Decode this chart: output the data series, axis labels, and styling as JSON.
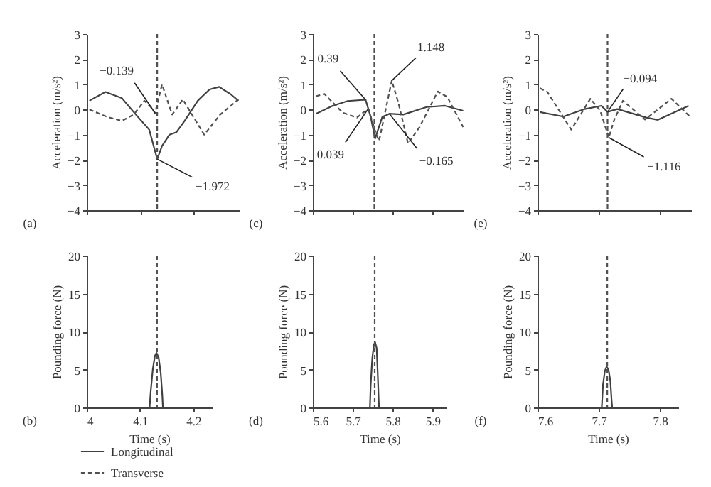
{
  "chart_data": [
    {
      "type": "line",
      "ylabel": "Acceleration (m/s²)",
      "xlim": [
        4,
        4.285
      ],
      "xticks": [
        4,
        4.1,
        4.2
      ],
      "ylim": [
        -4,
        3
      ],
      "yticks": [
        {
          "value": -4,
          "label": "−4"
        },
        {
          "value": -3,
          "label": "−3"
        },
        {
          "value": -2,
          "label": "−2"
        },
        {
          "value": -1,
          "label": "−1"
        },
        0,
        1,
        2,
        3
      ],
      "tick_labels": "y",
      "legend": "bottom",
      "series": [
        {
          "name": "Longitudinal",
          "color": "#404040",
          "line_style": "solid",
          "x": [
            4.005,
            4.035,
            4.066,
            4.092,
            4.117,
            4.126,
            4.132,
            4.141,
            4.155,
            4.168,
            4.185,
            4.208,
            4.23,
            4.248,
            4.27,
            4.284
          ],
          "values": [
            0.35,
            0.7,
            0.45,
            -0.2,
            -0.8,
            -1.5,
            -1.972,
            -1.45,
            -1.0,
            -0.9,
            -0.4,
            0.35,
            0.8,
            0.9,
            0.6,
            0.35
          ]
        },
        {
          "name": "Transverse",
          "color": "#505050",
          "line_style": "dashed",
          "x": [
            4.005,
            4.039,
            4.066,
            4.088,
            4.108,
            4.12,
            4.128,
            4.141,
            4.16,
            4.18,
            4.2,
            4.22,
            4.25,
            4.284
          ],
          "values": [
            0,
            -0.3,
            -0.45,
            -0.2,
            0.35,
            0.1,
            -0.139,
            1.0,
            -0.2,
            0.4,
            -0.3,
            -1.0,
            -0.2,
            0.4
          ]
        }
      ],
      "ref_lines": [
        {
          "axis": "x",
          "value": 4.132,
          "line_style": "dashed",
          "color": "#505050"
        }
      ],
      "annotations": [
        {
          "text": "−0.139",
          "x": 4.128,
          "y": -0.139
        },
        {
          "text": "−1.972",
          "x": 4.132,
          "y": -1.972
        },
        "(a)"
      ]
    },
    {
      "type": "line",
      "ylabel": "Acceleration (m/s²)",
      "xlim": [
        5.6,
        5.98
      ],
      "xticks": [
        5.6,
        5.7,
        5.8,
        5.9
      ],
      "ylim": [
        -4,
        3
      ],
      "yticks": [
        {
          "value": -4,
          "label": "−4"
        },
        {
          "value": -3,
          "label": "−3"
        },
        {
          "value": -2,
          "label": "−2"
        },
        {
          "value": -1,
          "label": "−1"
        },
        0,
        1,
        2,
        3
      ],
      "tick_labels": "y",
      "series": [
        {
          "color": "#404040",
          "line_style": "solid",
          "x": [
            5.608,
            5.65,
            5.688,
            5.733,
            5.746,
            5.757,
            5.775,
            5.793,
            5.828,
            5.887,
            5.933,
            5.979
          ],
          "values": [
            -0.17,
            0.15,
            0.34,
            0.39,
            -0.3,
            -1.15,
            -0.3,
            -0.165,
            -0.2,
            0.1,
            0.15,
            -0.05
          ]
        },
        {
          "color": "#505050",
          "line_style": "dashed",
          "x": [
            5.608,
            5.629,
            5.676,
            5.711,
            5.74,
            5.758,
            5.767,
            5.799,
            5.816,
            5.84,
            5.869,
            5.915,
            5.939,
            5.979
          ],
          "values": [
            0.53,
            0.62,
            -0.13,
            -0.32,
            0.039,
            -0.9,
            -1.25,
            1.148,
            0.25,
            -1.35,
            -0.7,
            0.72,
            0.5,
            -0.7
          ]
        }
      ],
      "ref_lines": [
        {
          "axis": "x",
          "value": 5.755,
          "line_style": "dashed",
          "color": "#505050"
        }
      ],
      "annotations": [
        {
          "text": "0.39",
          "x": 5.733,
          "y": 0.39
        },
        {
          "text": "0.039",
          "x": 5.74,
          "y": 0.039
        },
        {
          "text": "1.148",
          "x": 5.799,
          "y": 1.148
        },
        {
          "text": "−0.165",
          "x": 5.793,
          "y": -0.165
        },
        "(c)"
      ]
    },
    {
      "type": "line",
      "ylabel": "Acceleration (m/s²)",
      "xlim": [
        7.6,
        7.85
      ],
      "xticks": [
        7.6,
        7.7,
        7.8
      ],
      "ylim": [
        -4,
        3
      ],
      "yticks": [
        {
          "value": -4,
          "label": "−4"
        },
        {
          "value": -3,
          "label": "−3"
        },
        {
          "value": -2,
          "label": "−2"
        },
        {
          "value": -1,
          "label": "−1"
        },
        0,
        1,
        2,
        3
      ],
      "tick_labels": "y",
      "series": [
        {
          "color": "#404040",
          "line_style": "solid",
          "x": [
            7.604,
            7.642,
            7.677,
            7.704,
            7.714,
            7.73,
            7.777,
            7.796,
            7.846
          ],
          "values": [
            -0.1,
            -0.28,
            0.02,
            0.15,
            -0.094,
            0.02,
            -0.32,
            -0.41,
            0.15
          ]
        },
        {
          "color": "#505050",
          "line_style": "dashed",
          "x": [
            7.604,
            7.616,
            7.655,
            7.686,
            7.702,
            7.716,
            7.725,
            7.739,
            7.775,
            7.818,
            7.849
          ],
          "values": [
            0.85,
            0.7,
            -0.8,
            0.43,
            -0.04,
            -1.116,
            -0.4,
            0.35,
            -0.4,
            0.43,
            -0.3
          ]
        }
      ],
      "ref_lines": [
        {
          "axis": "x",
          "value": 7.714,
          "line_style": "dashed",
          "color": "#505050"
        }
      ],
      "annotations": [
        {
          "text": "−0.094",
          "x": 7.714,
          "y": -0.094
        },
        {
          "text": "−1.116",
          "x": 7.716,
          "y": -1.116
        },
        "(e)"
      ]
    },
    {
      "type": "line",
      "xlabel": "Time (s)",
      "ylabel": "Pounding force (N)",
      "xlim": [
        4,
        4.235
      ],
      "xticks": [
        4,
        4.1,
        4.2
      ],
      "ylim": [
        0,
        20
      ],
      "yticks": [
        0,
        5,
        10,
        15,
        20
      ],
      "series": [
        {
          "color": "#404040",
          "line_style": "solid",
          "x": [
            4,
            4.118,
            4.12,
            4.124,
            4.128,
            4.131,
            4.135,
            4.139,
            4.142,
            4.143,
            4.235
          ],
          "values": [
            0,
            0,
            2,
            5,
            6.8,
            7.2,
            6.6,
            4.5,
            1.5,
            0,
            0
          ]
        }
      ],
      "ref_lines": [
        {
          "axis": "x",
          "value": 4.132,
          "line_style": "dashed",
          "color": "#505050"
        }
      ],
      "annotations": [
        "(b)"
      ]
    },
    {
      "type": "line",
      "xlabel": "Time (s)",
      "ylabel": "Pounding force (N)",
      "xlim": [
        5.6,
        5.935
      ],
      "xticks": [
        5.6,
        5.7,
        5.8,
        5.9
      ],
      "ylim": [
        0,
        20
      ],
      "yticks": [
        0,
        5,
        10,
        15,
        20
      ],
      "series": [
        {
          "color": "#404040",
          "line_style": "solid",
          "x": [
            5.6,
            5.743,
            5.745,
            5.749,
            5.753,
            5.756,
            5.76,
            5.763,
            5.765,
            5.766,
            5.935
          ],
          "values": [
            0,
            0,
            3,
            6.5,
            8.2,
            8.6,
            7.8,
            4,
            1,
            0,
            0
          ]
        }
      ],
      "ref_lines": [
        {
          "axis": "x",
          "value": 5.755,
          "line_style": "dashed",
          "color": "#505050"
        }
      ],
      "annotations": [
        "(d)"
      ]
    },
    {
      "type": "line",
      "xlabel": "Time (s)",
      "ylabel": "Pounding force (N)",
      "xlim": [
        7.6,
        7.83
      ],
      "xticks": [
        7.6,
        7.7,
        7.8
      ],
      "ylim": [
        0,
        20
      ],
      "yticks": [
        0,
        5,
        10,
        15,
        20
      ],
      "series": [
        {
          "color": "#404040",
          "line_style": "solid",
          "x": [
            7.6,
            7.705,
            7.707,
            7.71,
            7.713,
            7.716,
            7.719,
            7.721,
            7.722,
            7.83
          ],
          "values": [
            0,
            0,
            3,
            4.8,
            5.4,
            5,
            3.5,
            1,
            0,
            0
          ]
        }
      ],
      "ref_lines": [
        {
          "axis": "x",
          "value": 7.714,
          "line_style": "dashed",
          "color": "#505050"
        }
      ],
      "annotations": [
        "(f)"
      ]
    }
  ]
}
